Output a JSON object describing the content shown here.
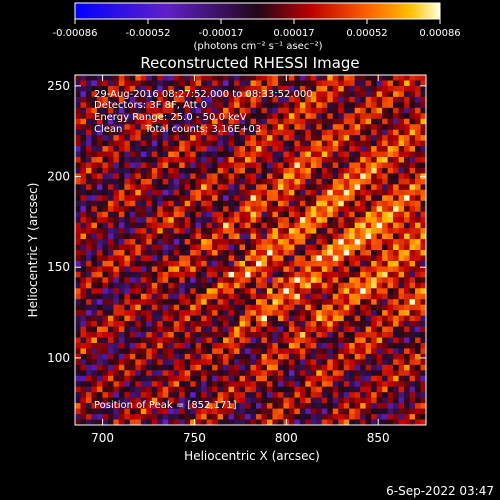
{
  "chart_data": {
    "type": "heatmap",
    "title": "Reconstructed RHESSI Image",
    "xlabel": "Heliocentric X (arcsec)",
    "ylabel": "Heliocentric Y (arcsec)",
    "xlim": [
      685,
      876
    ],
    "ylim": [
      63,
      256
    ],
    "xticks": [
      700,
      750,
      800,
      850
    ],
    "yticks": [
      100,
      150,
      200,
      250
    ],
    "colorbar": {
      "range": [
        -0.00086,
        0.00086
      ],
      "ticks": [
        "-0.00086",
        "-0.00052",
        "-0.00017",
        "0.00017",
        "0.00052",
        "0.00086"
      ],
      "unit": "(photons cm⁻² s⁻¹ asec⁻²)"
    },
    "peak": [
      852,
      171
    ],
    "annotations": {
      "time_range": "29-Aug-2016 08:27:52.000 to 08:33:52.000",
      "detectors": "Detectors: 3F 8F, Att 0",
      "energy": "Energy Range: 25.0 - 50.0 keV",
      "method": "Clean",
      "counts": "Total counts: 3.16E+03",
      "peak_text": "Position of Peak = [852,171]"
    }
  },
  "footer": {
    "timestamp": "6-Sep-2022 03:47"
  },
  "colors": {
    "background": "#000000",
    "foreground": "#ffffff"
  }
}
